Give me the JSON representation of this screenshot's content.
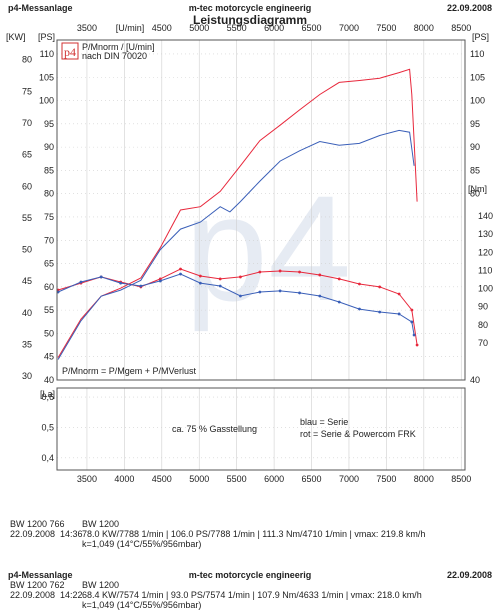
{
  "header": {
    "left": "p4-Messanlage",
    "center": "m-tec motorcycle engineerig",
    "date": "22.09.2008",
    "title": "Leistungsdiagramm"
  },
  "chart_data": {
    "type": "line",
    "x_unit": "[U/min]",
    "kw_axis_label": "[KW]",
    "ps_axis_label": "[PS]",
    "ps_right_label": "[PS]",
    "nm_axis_label": "[Nm]",
    "la_axis_label": "[La]",
    "logo": "p4",
    "logo_line1": "P/Mnorm / [U/min]",
    "logo_line2": "nach DIN 70020",
    "formula": "P/Mnorm = P/Mgem + P/MVerlust",
    "annotation": "ca. 75 % Gasstellung",
    "legend_line1": "blau = Serie",
    "legend_line2": "rot = Serie & Powercom FRK",
    "xlim": [
      3100,
      8550
    ],
    "xticks": [
      3500,
      4000,
      4500,
      5000,
      5500,
      6000,
      6500,
      7000,
      7500,
      8000,
      8500
    ],
    "top_xticks": [
      3500,
      4500,
      5000,
      5500,
      6000,
      6500,
      7000,
      7500,
      8000,
      8500
    ],
    "ylim": [
      40,
      113
    ],
    "yticks": [
      40,
      45,
      50,
      55,
      60,
      65,
      70,
      75,
      80,
      85,
      90,
      95,
      100,
      105,
      110
    ],
    "right_yticks": [
      40,
      80,
      85,
      90,
      95,
      100,
      105,
      110
    ],
    "kw_ylim": [
      29.4,
      83.1
    ],
    "kw_yticks": [
      30,
      35,
      40,
      45,
      50,
      55,
      60,
      65,
      70,
      75,
      80
    ],
    "y2lim": [
      49.6,
      237
    ],
    "y2ticks": [
      70,
      80,
      90,
      100,
      110,
      120,
      130,
      140
    ],
    "la_ylim": [
      0.36,
      0.63
    ],
    "la_yticks": [
      {
        "value": 0.4,
        "label": "0,4"
      },
      {
        "value": 0.5,
        "label": "0,5"
      },
      {
        "value": 0.6,
        "label": "0,6"
      }
    ],
    "grid": true,
    "series": [
      {
        "color": "#e8283c",
        "axis": "y",
        "markers": false,
        "x": [
          3115,
          3420,
          3690,
          3950,
          4220,
          4480,
          4750,
          5015,
          5280,
          5550,
          5810,
          6080,
          6340,
          6610,
          6870,
          7140,
          7410,
          7670,
          7810,
          7840,
          7910
        ],
        "values": [
          44.8,
          53.1,
          58,
          59.7,
          61.9,
          68.4,
          76.5,
          77.2,
          80.5,
          86,
          91.4,
          94.7,
          98,
          101.3,
          103.9,
          104.3,
          104.8,
          106,
          106.7,
          101.3,
          78.3
        ]
      },
      {
        "color": "#3a5fb8",
        "axis": "y",
        "markers": false,
        "x": [
          3115,
          3420,
          3690,
          3950,
          4220,
          4480,
          4750,
          5015,
          5280,
          5410,
          5550,
          5810,
          6080,
          6340,
          6610,
          6870,
          7140,
          7410,
          7670,
          7810,
          7870
        ],
        "values": [
          44.4,
          52.7,
          58,
          59.3,
          61.4,
          68,
          72.4,
          73.9,
          77.2,
          76.1,
          78.3,
          82.7,
          87,
          89.2,
          91.2,
          90.4,
          90.8,
          92.5,
          93.6,
          93.2,
          86
        ]
      },
      {
        "color": "#e8283c",
        "axis": "y2",
        "markers": true,
        "x": [
          3115,
          3420,
          3690,
          3950,
          4220,
          4480,
          4750,
          5015,
          5280,
          5550,
          5810,
          6080,
          6340,
          6610,
          6870,
          7140,
          7410,
          7670,
          7840,
          7910
        ],
        "values": [
          99.2,
          103,
          106.4,
          103.6,
          100.9,
          105.3,
          110.8,
          106.9,
          105.3,
          106.4,
          109.1,
          109.7,
          109.1,
          107.5,
          105.3,
          102.5,
          100.9,
          97,
          88.2,
          68.9
        ]
      },
      {
        "color": "#3a5fb8",
        "axis": "y2",
        "markers": true,
        "x": [
          3115,
          3420,
          3690,
          3950,
          4220,
          4480,
          4750,
          5015,
          5280,
          5550,
          5810,
          6080,
          6340,
          6610,
          6870,
          7140,
          7410,
          7670,
          7840,
          7870
        ],
        "values": [
          98.1,
          103.6,
          106.4,
          103,
          101.4,
          104.2,
          108,
          103,
          101.4,
          95.9,
          98.1,
          98.7,
          97.6,
          95.9,
          92.6,
          88.7,
          87.1,
          86,
          81.6,
          74.4
        ]
      }
    ]
  },
  "footer": {
    "run1": {
      "id": "BW 1200 766",
      "model": "BW 1200",
      "date": "22.09.2008",
      "time": "14:36",
      "stats": "78.0 KW/7788 1/min  |  106.0 PS/7788 1/min  |  111.3 Nm/4710 1/min | vmax: 219.8 km/h",
      "k": "k=1,049 (14°C/55%/956mbar)"
    },
    "header2": {
      "left": "p4-Messanlage",
      "center": "m-tec motorcycle engineerig",
      "date": "22.09.2008"
    },
    "run2": {
      "id": "BW 1200 762",
      "model": "BW 1200",
      "date": "22.09.2008",
      "time": "14:22",
      "stats": "68.4 KW/7574 1/min  |  93.0 PS/7574 1/min  |  107.9 Nm/4633 1/min | vmax: 218.0 km/h",
      "k": "k=1,049 (14°C/55%/956mbar)"
    }
  }
}
